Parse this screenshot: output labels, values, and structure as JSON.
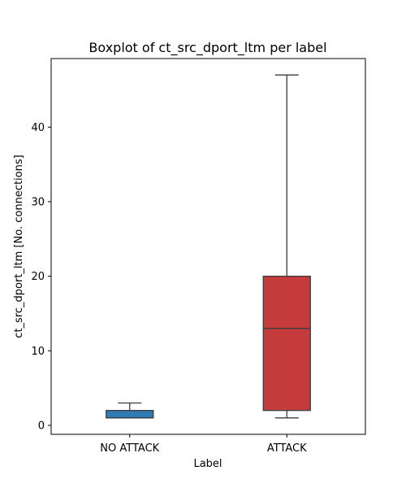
{
  "chart_data": {
    "type": "box",
    "title": "Boxplot of ct_src_dport_ltm per label",
    "xlabel": "Label",
    "ylabel": "ct_src_dport_ltm [No. connections]",
    "categories": [
      "NO ATTACK",
      "ATTACK"
    ],
    "yticks": [
      0,
      10,
      20,
      30,
      40
    ],
    "ylim": [
      -1.2,
      49.2
    ],
    "grid": false,
    "boxes": [
      {
        "category": "NO ATTACK",
        "whisker_low": 1,
        "q1": 1,
        "median": 1,
        "q3": 2,
        "whisker_high": 3,
        "color": "#2f7bb6"
      },
      {
        "category": "ATTACK",
        "whisker_low": 1,
        "q1": 2,
        "median": 13,
        "q3": 20,
        "whisker_high": 47,
        "color": "#c63b3c"
      }
    ]
  }
}
